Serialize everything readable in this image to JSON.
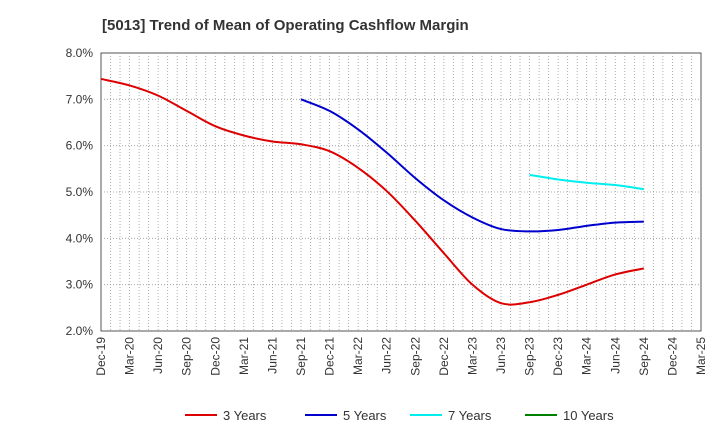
{
  "chart_data": {
    "type": "line",
    "title": "[5013]  Trend of Mean of Operating Cashflow Margin",
    "xlabel": "",
    "ylabel": "",
    "ylim": [
      2.0,
      8.0
    ],
    "y_ticks": [
      "2.0%",
      "3.0%",
      "4.0%",
      "5.0%",
      "6.0%",
      "7.0%",
      "8.0%"
    ],
    "categories": [
      "Dec-19",
      "Mar-20",
      "Jun-20",
      "Sep-20",
      "Dec-20",
      "Mar-21",
      "Jun-21",
      "Sep-21",
      "Dec-21",
      "Mar-22",
      "Jun-22",
      "Sep-22",
      "Dec-22",
      "Mar-23",
      "Jun-23",
      "Sep-23",
      "Dec-23",
      "Mar-24",
      "Jun-24",
      "Sep-24",
      "Dec-24",
      "Mar-25"
    ],
    "grid": true,
    "legend_position": "bottom",
    "series": [
      {
        "name": "3 Years",
        "color": "#dd0000",
        "values": [
          7.44,
          7.3,
          7.08,
          6.75,
          6.42,
          6.22,
          6.09,
          6.03,
          5.88,
          5.52,
          5.02,
          4.38,
          3.68,
          3.0,
          2.6,
          2.62,
          2.78,
          3.0,
          3.22,
          3.35,
          null,
          null
        ]
      },
      {
        "name": "5 Years",
        "color": "#0000cc",
        "values": [
          null,
          null,
          null,
          null,
          null,
          null,
          null,
          7.0,
          6.75,
          6.35,
          5.85,
          5.3,
          4.82,
          4.45,
          4.2,
          4.15,
          4.18,
          4.27,
          4.34,
          4.36,
          null,
          null
        ]
      },
      {
        "name": "7 Years",
        "color": "#00eeee",
        "values": [
          null,
          null,
          null,
          null,
          null,
          null,
          null,
          null,
          null,
          null,
          null,
          null,
          null,
          null,
          null,
          5.37,
          5.27,
          5.2,
          5.15,
          5.06,
          null,
          null
        ]
      },
      {
        "name": "10 Years",
        "color": "#008000",
        "values": [
          null,
          null,
          null,
          null,
          null,
          null,
          null,
          null,
          null,
          null,
          null,
          null,
          null,
          null,
          null,
          null,
          null,
          null,
          null,
          null,
          null,
          null
        ]
      }
    ]
  }
}
